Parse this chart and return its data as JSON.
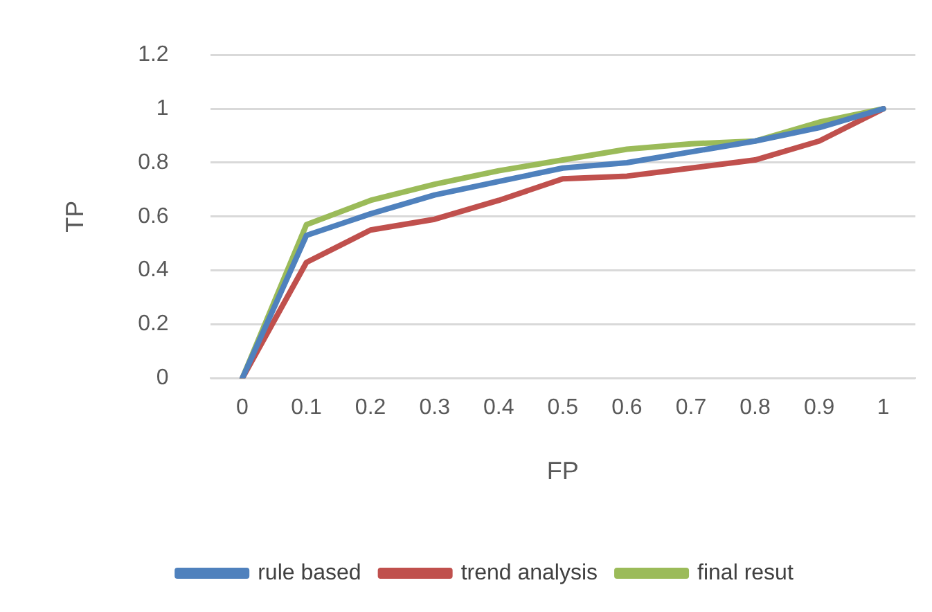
{
  "chart_data": {
    "type": "line",
    "xlabel": "FP",
    "ylabel": "TP",
    "categories": [
      "0",
      "0.1",
      "0.2",
      "0.3",
      "0.4",
      "0.5",
      "0.6",
      "0.7",
      "0.8",
      "0.9",
      "1"
    ],
    "series": [
      {
        "name": "rule based",
        "color": "#4f81bd",
        "values": [
          0,
          0.53,
          0.61,
          0.68,
          0.73,
          0.78,
          0.8,
          0.84,
          0.88,
          0.93,
          1
        ]
      },
      {
        "name": "trend analysis",
        "color": "#c0504d",
        "values": [
          0,
          0.43,
          0.55,
          0.59,
          0.66,
          0.74,
          0.75,
          0.78,
          0.81,
          0.88,
          1
        ]
      },
      {
        "name": "final resut",
        "color": "#9bbb59",
        "values": [
          0,
          0.57,
          0.66,
          0.72,
          0.77,
          0.81,
          0.85,
          0.87,
          0.88,
          0.95,
          1
        ]
      }
    ],
    "ylim": [
      0,
      1.2
    ],
    "yticks": [
      0,
      0.2,
      0.4,
      0.6,
      0.8,
      1,
      1.2
    ],
    "grid": "y",
    "legend": "bottom",
    "marker": "none",
    "line_style": "solid"
  }
}
